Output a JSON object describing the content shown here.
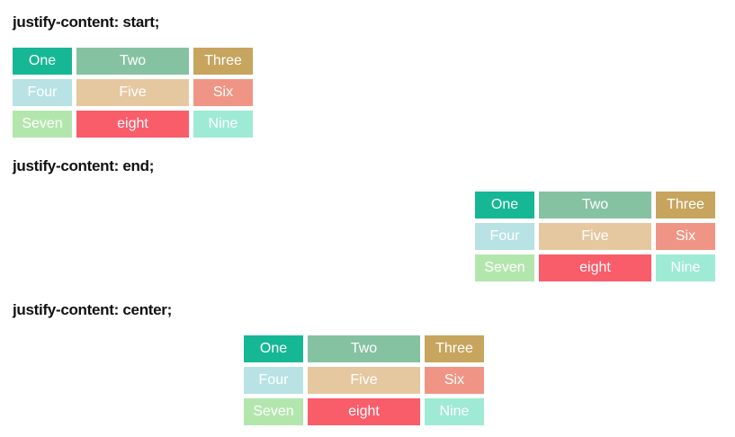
{
  "page": {
    "background": "#ffffff",
    "heading_color": "#111111"
  },
  "sections": [
    {
      "label": "justify-content: start;",
      "justify": "start"
    },
    {
      "label": "justify-content: end;",
      "justify": "end"
    },
    {
      "label": "justify-content: center;",
      "justify": "center"
    }
  ],
  "grid": {
    "text_color": "#ffffff",
    "cells": [
      {
        "label": "One",
        "color": "#16b795"
      },
      {
        "label": "Two",
        "color": "#85c2a2"
      },
      {
        "label": "Three",
        "color": "#c7a55e"
      },
      {
        "label": "Four",
        "color": "#b8e2e3"
      },
      {
        "label": "Five",
        "color": "#e5c89f"
      },
      {
        "label": "Six",
        "color": "#f09585"
      },
      {
        "label": "Seven",
        "color": "#b3e6ad"
      },
      {
        "label": "eight",
        "color": "#f95d6a"
      },
      {
        "label": "Nine",
        "color": "#9fead4"
      }
    ]
  }
}
